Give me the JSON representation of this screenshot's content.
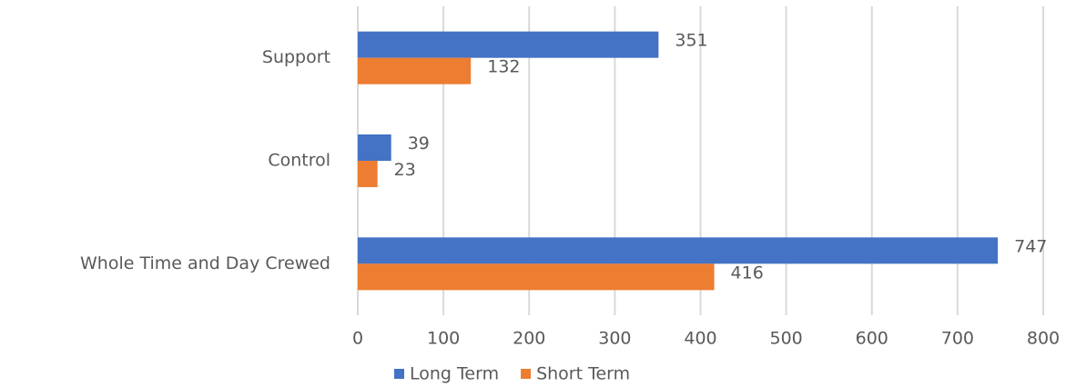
{
  "chart_data": {
    "type": "hbar",
    "categories": [
      "Support",
      "Control",
      "Whole Time and Day Crewed"
    ],
    "series": [
      {
        "name": "Long Term",
        "color": "#4472c4",
        "values": [
          351,
          39,
          747
        ]
      },
      {
        "name": "Short Term",
        "color": "#ed7d31",
        "values": [
          132,
          23,
          416
        ]
      }
    ],
    "xlim": [
      0,
      800
    ],
    "xticks": [
      0,
      100,
      200,
      300,
      400,
      500,
      600,
      700,
      800
    ],
    "grid": true,
    "legend": "bottom"
  }
}
